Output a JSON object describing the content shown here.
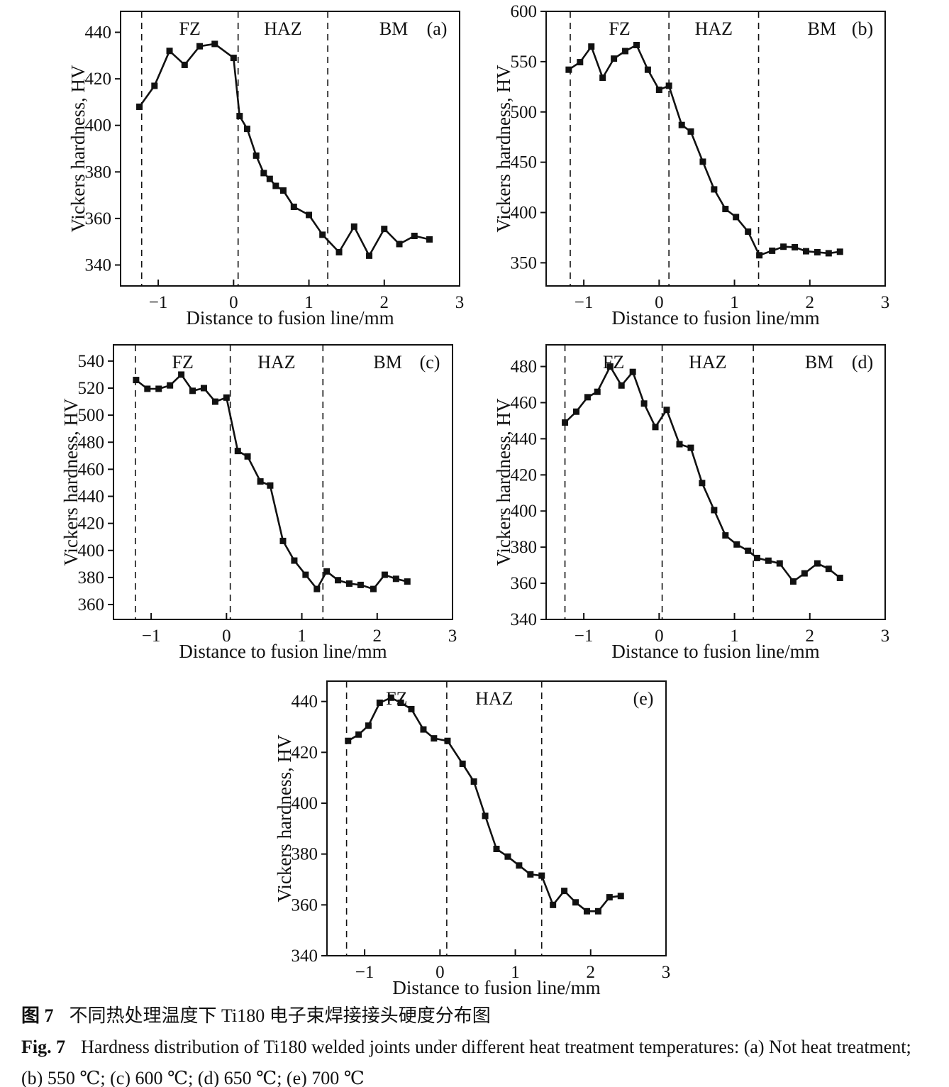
{
  "figure": {
    "caption_zh_label": "图 7",
    "caption_zh_text": "不同热处理温度下 Ti180 电子束焊接接头硬度分布图",
    "caption_en_label": "Fig. 7",
    "caption_en_text": "Hardness distribution of Ti180 welded joints under different heat treatment temperatures: (a) Not heat treatment;",
    "caption_en_text_line2": "(b) 550 ℃; (c) 600 ℃; (d) 650 ℃; (e) 700 ℃"
  },
  "colors": {
    "line": "#111111",
    "text": "#111111",
    "background": "#ffffff"
  },
  "chart_data": [
    {
      "type": "line",
      "panel_label": "(a)",
      "xlabel": "Distance to fusion line/mm",
      "ylabel": "Vickers hardness, HV",
      "xlim": [
        -1.5,
        3
      ],
      "ylim": [
        331,
        449
      ],
      "xticks": [
        -1,
        0,
        1,
        2,
        3
      ],
      "yticks": [
        340,
        360,
        380,
        400,
        420,
        440
      ],
      "zone_lines": [
        -1.22,
        0.06,
        1.25
      ],
      "zone_labels": [
        "FZ",
        "HAZ",
        "BM"
      ],
      "points": [
        [
          -1.25,
          408
        ],
        [
          -1.05,
          417
        ],
        [
          -0.85,
          432
        ],
        [
          -0.65,
          426
        ],
        [
          -0.45,
          434
        ],
        [
          -0.25,
          435
        ],
        [
          0.0,
          429
        ],
        [
          0.08,
          404
        ],
        [
          0.18,
          398.5
        ],
        [
          0.3,
          387
        ],
        [
          0.4,
          379.5
        ],
        [
          0.48,
          377
        ],
        [
          0.56,
          374
        ],
        [
          0.66,
          372
        ],
        [
          0.8,
          365
        ],
        [
          1.0,
          361.5
        ],
        [
          1.18,
          353
        ],
        [
          1.4,
          345.5
        ],
        [
          1.6,
          356.5
        ],
        [
          1.8,
          344
        ],
        [
          2.0,
          355.5
        ],
        [
          2.2,
          349
        ],
        [
          2.4,
          352.5
        ],
        [
          2.6,
          351
        ]
      ]
    },
    {
      "type": "line",
      "panel_label": "(b)",
      "xlabel": "Distance to fusion line/mm",
      "ylabel": "Vickers hardness, HV",
      "xlim": [
        -1.5,
        3
      ],
      "ylim": [
        327,
        600
      ],
      "xticks": [
        -1,
        0,
        1,
        2,
        3
      ],
      "yticks": [
        350,
        400,
        450,
        500,
        550,
        600
      ],
      "zone_lines": [
        -1.18,
        0.13,
        1.32
      ],
      "zone_labels": [
        "FZ",
        "HAZ",
        "BM"
      ],
      "points": [
        [
          -1.2,
          542
        ],
        [
          -1.05,
          549.5
        ],
        [
          -0.9,
          565
        ],
        [
          -0.75,
          534
        ],
        [
          -0.6,
          553
        ],
        [
          -0.45,
          560.5
        ],
        [
          -0.3,
          566.5
        ],
        [
          -0.15,
          542
        ],
        [
          0.0,
          522
        ],
        [
          0.13,
          526
        ],
        [
          0.3,
          487
        ],
        [
          0.42,
          480.5
        ],
        [
          0.58,
          450.5
        ],
        [
          0.73,
          423
        ],
        [
          0.88,
          403.5
        ],
        [
          1.02,
          395.5
        ],
        [
          1.18,
          381
        ],
        [
          1.33,
          357.5
        ],
        [
          1.5,
          362
        ],
        [
          1.65,
          366
        ],
        [
          1.8,
          365.5
        ],
        [
          1.95,
          361.5
        ],
        [
          2.1,
          360.5
        ],
        [
          2.25,
          359.5
        ],
        [
          2.4,
          361
        ]
      ]
    },
    {
      "type": "line",
      "panel_label": "(c)",
      "xlabel": "Distance to fusion line/mm",
      "ylabel": "Vickers hardness, HV",
      "xlim": [
        -1.5,
        3
      ],
      "ylim": [
        349,
        552
      ],
      "xticks": [
        -1,
        0,
        1,
        2,
        3
      ],
      "yticks": [
        360,
        380,
        400,
        420,
        440,
        460,
        480,
        500,
        520,
        540
      ],
      "zone_lines": [
        -1.21,
        0.05,
        1.28
      ],
      "zone_labels": [
        "FZ",
        "HAZ",
        "BM"
      ],
      "points": [
        [
          -1.2,
          526
        ],
        [
          -1.05,
          519.5
        ],
        [
          -0.9,
          519.5
        ],
        [
          -0.75,
          522
        ],
        [
          -0.6,
          530
        ],
        [
          -0.45,
          518
        ],
        [
          -0.3,
          520
        ],
        [
          -0.15,
          510
        ],
        [
          0.0,
          513
        ],
        [
          0.15,
          473.5
        ],
        [
          0.28,
          469.5
        ],
        [
          0.45,
          451
        ],
        [
          0.58,
          448
        ],
        [
          0.75,
          407
        ],
        [
          0.9,
          392.5
        ],
        [
          1.05,
          382
        ],
        [
          1.2,
          371.5
        ],
        [
          1.33,
          384.5
        ],
        [
          1.48,
          378
        ],
        [
          1.63,
          375.5
        ],
        [
          1.78,
          374.5
        ],
        [
          1.95,
          371.5
        ],
        [
          2.1,
          382
        ],
        [
          2.25,
          379
        ],
        [
          2.4,
          377
        ]
      ]
    },
    {
      "type": "line",
      "panel_label": "(d)",
      "xlabel": "Distance to fusion line/mm",
      "ylabel": "Vickers hardness, HV",
      "xlim": [
        -1.5,
        3
      ],
      "ylim": [
        340,
        492
      ],
      "xticks": [
        -1,
        0,
        1,
        2,
        3
      ],
      "yticks": [
        340,
        360,
        380,
        400,
        420,
        440,
        460,
        480
      ],
      "zone_lines": [
        -1.25,
        0.04,
        1.25
      ],
      "zone_labels": [
        "FZ",
        "HAZ",
        "BM"
      ],
      "points": [
        [
          -1.25,
          449
        ],
        [
          -1.1,
          455
        ],
        [
          -0.95,
          463
        ],
        [
          -0.82,
          466
        ],
        [
          -0.65,
          480
        ],
        [
          -0.5,
          469.5
        ],
        [
          -0.35,
          477
        ],
        [
          -0.2,
          459.5
        ],
        [
          -0.05,
          446.5
        ],
        [
          0.1,
          456
        ],
        [
          0.27,
          437
        ],
        [
          0.42,
          435
        ],
        [
          0.57,
          415.5
        ],
        [
          0.73,
          400.5
        ],
        [
          0.88,
          386.5
        ],
        [
          1.03,
          381.5
        ],
        [
          1.18,
          378
        ],
        [
          1.3,
          374
        ],
        [
          1.45,
          372.5
        ],
        [
          1.6,
          371
        ],
        [
          1.78,
          361
        ],
        [
          1.93,
          365.5
        ],
        [
          2.1,
          371
        ],
        [
          2.25,
          368
        ],
        [
          2.4,
          363
        ]
      ]
    },
    {
      "type": "line",
      "panel_label": "(e)",
      "xlabel": "Distance to fusion line/mm",
      "ylabel": "Vickers hardness, HV",
      "xlim": [
        -1.5,
        3
      ],
      "ylim": [
        340,
        448
      ],
      "xticks": [
        -1,
        0,
        1,
        2,
        3
      ],
      "yticks": [
        340,
        360,
        380,
        400,
        420,
        440
      ],
      "zone_lines": [
        -1.24,
        0.09,
        1.35
      ],
      "zone_labels": [
        "FZ",
        "HAZ"
      ],
      "points": [
        [
          -1.22,
          424.5
        ],
        [
          -1.08,
          427
        ],
        [
          -0.95,
          430.5
        ],
        [
          -0.8,
          439.5
        ],
        [
          -0.65,
          441.5
        ],
        [
          -0.52,
          439.5
        ],
        [
          -0.38,
          437
        ],
        [
          -0.22,
          429
        ],
        [
          -0.08,
          425.5
        ],
        [
          0.1,
          424.5
        ],
        [
          0.3,
          415.5
        ],
        [
          0.45,
          408.5
        ],
        [
          0.6,
          395
        ],
        [
          0.75,
          382
        ],
        [
          0.9,
          379
        ],
        [
          1.05,
          375.5
        ],
        [
          1.2,
          372
        ],
        [
          1.35,
          371.5
        ],
        [
          1.5,
          360
        ],
        [
          1.65,
          365.5
        ],
        [
          1.8,
          361
        ],
        [
          1.95,
          357.5
        ],
        [
          2.1,
          357.5
        ],
        [
          2.25,
          363
        ],
        [
          2.4,
          363.5
        ]
      ]
    }
  ]
}
